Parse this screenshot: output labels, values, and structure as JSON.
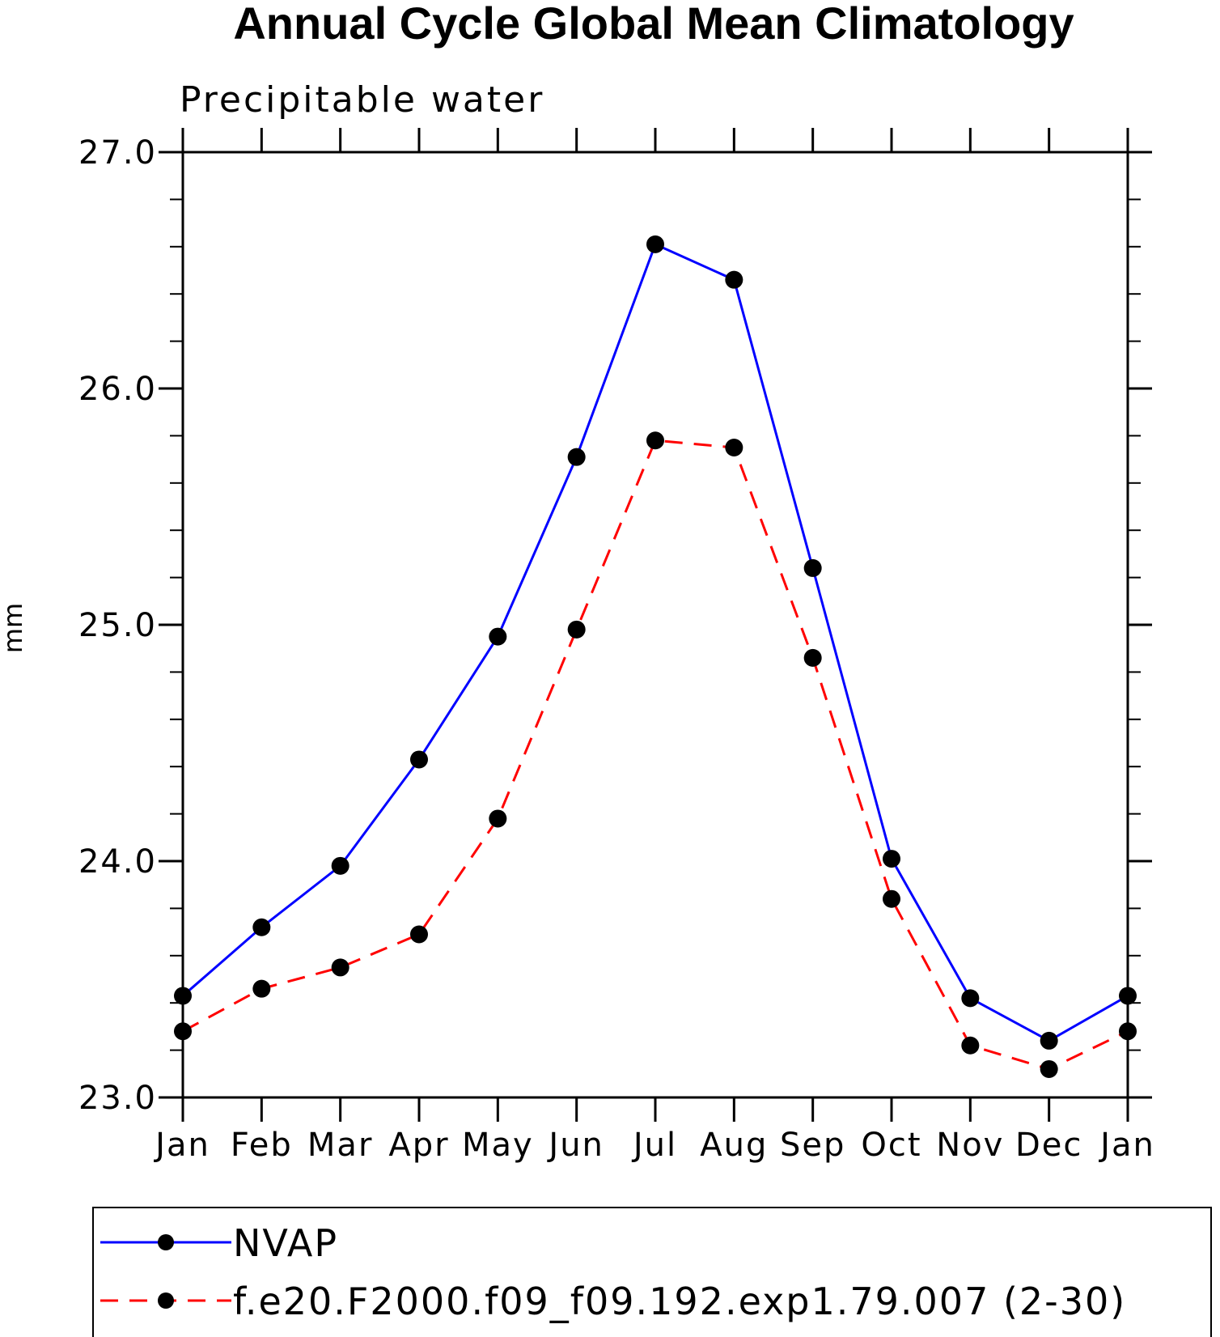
{
  "chart_data": {
    "type": "line",
    "title": "Annual Cycle Global Mean Climatology",
    "subtitle": "Precipitable water",
    "xlabel": "",
    "ylabel": "mm",
    "categories": [
      "Jan",
      "Feb",
      "Mar",
      "Apr",
      "May",
      "Jun",
      "Jul",
      "Aug",
      "Sep",
      "Oct",
      "Nov",
      "Dec",
      "Jan"
    ],
    "ylim": [
      23.0,
      27.0
    ],
    "yticks": [
      "23.0",
      "24.0",
      "25.0",
      "26.0",
      "27.0"
    ],
    "ytick_values": [
      23.0,
      24.0,
      25.0,
      26.0,
      27.0
    ],
    "yminor_step": 0.2,
    "series": [
      {
        "name": "NVAP",
        "color": "#0000ff",
        "dash": "solid",
        "values": [
          23.43,
          23.72,
          23.98,
          24.43,
          24.95,
          25.71,
          26.61,
          26.46,
          25.24,
          24.01,
          23.42,
          23.24,
          23.43
        ]
      },
      {
        "name": "f.e20.F2000.f09_f09.192.exp1.79.007 (2-30)",
        "color": "#ff0000",
        "dash": "dashed",
        "values": [
          23.28,
          23.46,
          23.55,
          23.69,
          24.18,
          24.98,
          25.78,
          25.75,
          24.86,
          23.84,
          23.22,
          23.12,
          23.28
        ]
      }
    ],
    "legend_position": "bottom"
  }
}
